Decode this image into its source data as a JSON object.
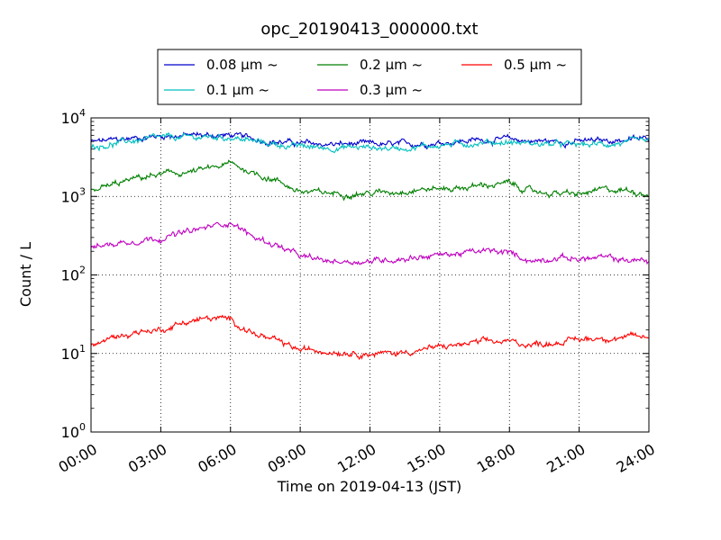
{
  "chart_data": {
    "type": "line",
    "title": "opc_20190413_000000.txt",
    "xlabel": "Time on 2019-04-13 (JST)",
    "ylabel": "Count / L",
    "yscale": "log",
    "ylim": [
      1,
      10000
    ],
    "xlim": [
      "00:00",
      "24:00"
    ],
    "grid": true,
    "legend_position": "top",
    "x_tick_labels": [
      "00:00",
      "03:00",
      "06:00",
      "09:00",
      "12:00",
      "15:00",
      "18:00",
      "21:00",
      "24:00"
    ],
    "y_ticks": [
      {
        "base": "10",
        "exp": "0"
      },
      {
        "base": "10",
        "exp": "1"
      },
      {
        "base": "10",
        "exp": "2"
      },
      {
        "base": "10",
        "exp": "3"
      },
      {
        "base": "10",
        "exp": "4"
      }
    ],
    "x_hours": [
      0,
      1,
      2,
      3,
      4,
      5,
      6,
      7,
      8,
      9,
      10,
      11,
      12,
      13,
      14,
      15,
      16,
      17,
      18,
      19,
      20,
      21,
      22,
      23,
      24
    ],
    "series": [
      {
        "name": "0.08 μm ~",
        "color": "#0000cc",
        "values": [
          4900,
          5200,
          5600,
          5900,
          6000,
          6000,
          6000,
          5400,
          5000,
          4700,
          4600,
          4600,
          4600,
          4500,
          4700,
          4900,
          5100,
          5300,
          5300,
          5100,
          5000,
          5000,
          5100,
          5300,
          5400
        ]
      },
      {
        "name": "0.1 μm ~",
        "color": "#00bfbf",
        "values": [
          4300,
          4700,
          5200,
          5500,
          5600,
          5700,
          5700,
          5000,
          4600,
          4300,
          4200,
          4200,
          4200,
          4100,
          4300,
          4500,
          4700,
          4900,
          4900,
          4700,
          4600,
          4500,
          4600,
          4800,
          4900
        ]
      },
      {
        "name": "0.2 μm ~",
        "color": "#007f00",
        "values": [
          1200,
          1400,
          1700,
          1900,
          2000,
          2200,
          2600,
          2000,
          1600,
          1150,
          1100,
          1100,
          1100,
          1150,
          1250,
          1250,
          1300,
          1400,
          1450,
          1150,
          1100,
          1050,
          1200,
          1200,
          1100
        ]
      },
      {
        "name": "0.3 μm ~",
        "color": "#bf00bf",
        "values": [
          220,
          250,
          280,
          300,
          340,
          400,
          480,
          300,
          240,
          170,
          150,
          150,
          150,
          160,
          170,
          180,
          190,
          200,
          190,
          150,
          170,
          160,
          165,
          155,
          150
        ]
      },
      {
        "name": "0.5 μm ~",
        "color": "#ff0000",
        "values": [
          12.5,
          16,
          19,
          20,
          25,
          28,
          27,
          18,
          14,
          11,
          11,
          10.5,
          10,
          10,
          11,
          12,
          13,
          14,
          14,
          13,
          14,
          15,
          16,
          16,
          16
        ]
      }
    ]
  }
}
